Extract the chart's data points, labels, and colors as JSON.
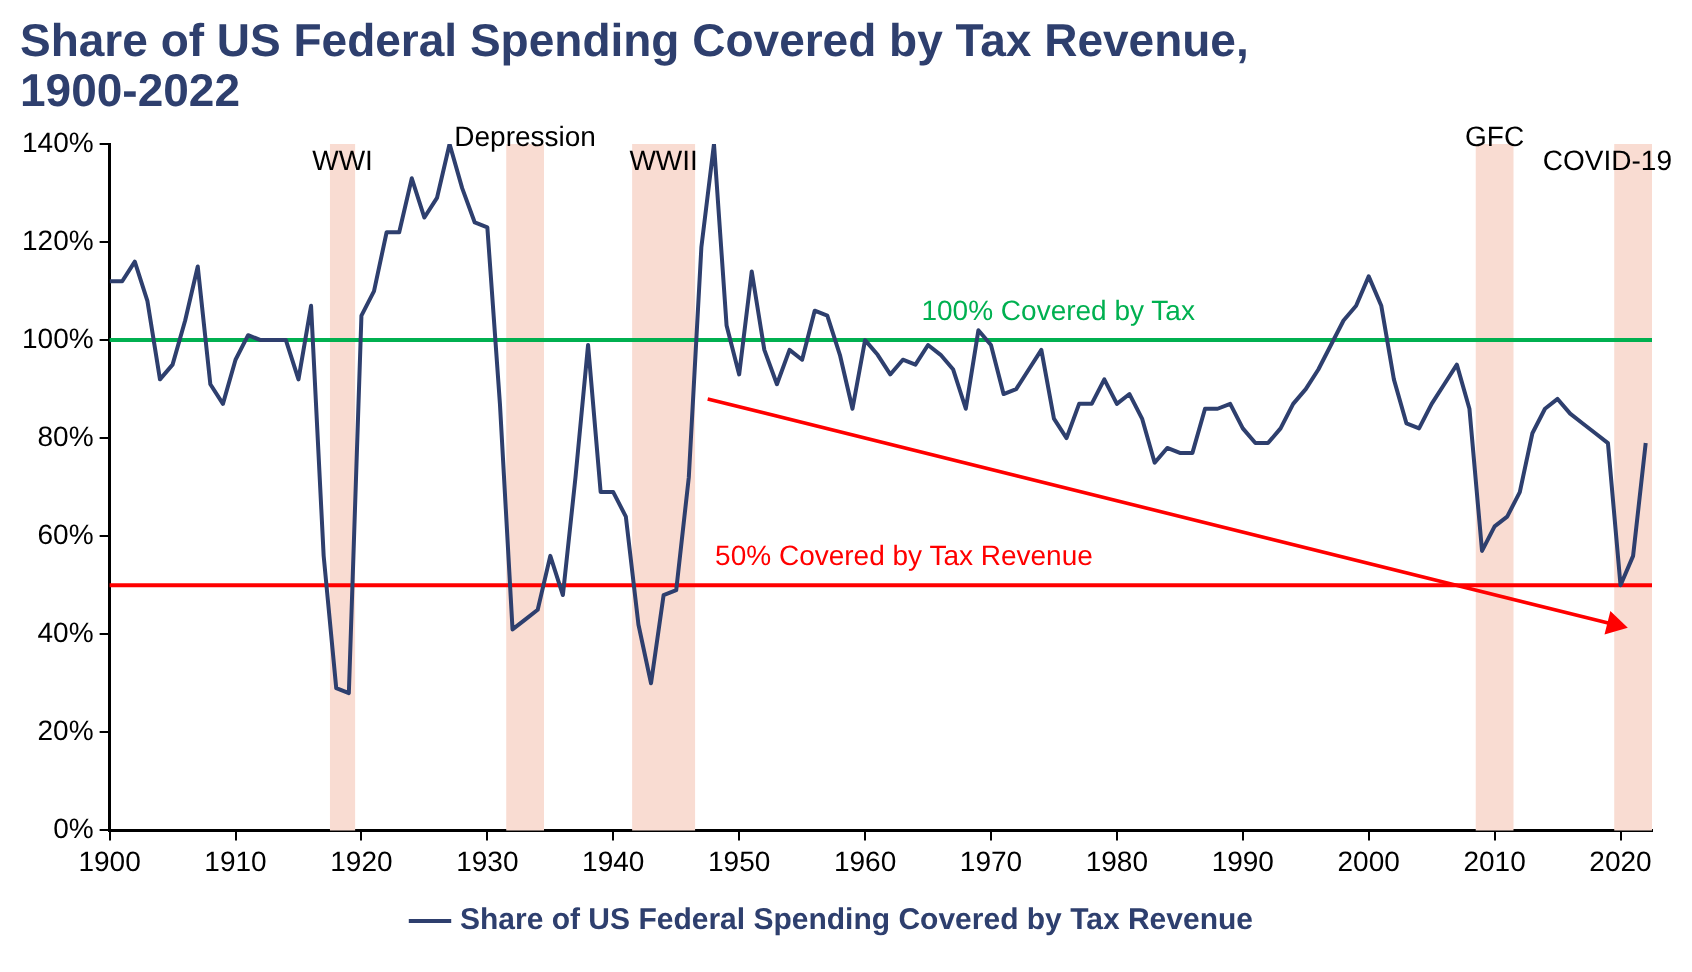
{
  "chart_data": {
    "type": "line",
    "title": "Share of US Federal Spending Covered by Tax Revenue, 1900-2022",
    "x": [
      1900,
      1901,
      1902,
      1903,
      1904,
      1905,
      1906,
      1907,
      1908,
      1909,
      1910,
      1911,
      1912,
      1913,
      1914,
      1915,
      1916,
      1917,
      1918,
      1919,
      1920,
      1921,
      1922,
      1923,
      1924,
      1925,
      1926,
      1927,
      1928,
      1929,
      1930,
      1931,
      1932,
      1933,
      1934,
      1935,
      1936,
      1937,
      1938,
      1939,
      1940,
      1941,
      1942,
      1943,
      1944,
      1945,
      1946,
      1947,
      1948,
      1949,
      1950,
      1951,
      1952,
      1953,
      1954,
      1955,
      1956,
      1957,
      1958,
      1959,
      1960,
      1961,
      1962,
      1963,
      1964,
      1965,
      1966,
      1967,
      1968,
      1969,
      1970,
      1971,
      1972,
      1973,
      1974,
      1975,
      1976,
      1977,
      1978,
      1979,
      1980,
      1981,
      1982,
      1983,
      1984,
      1985,
      1986,
      1987,
      1988,
      1989,
      1990,
      1991,
      1992,
      1993,
      1994,
      1995,
      1996,
      1997,
      1998,
      1999,
      2000,
      2001,
      2002,
      2003,
      2004,
      2005,
      2006,
      2007,
      2008,
      2009,
      2010,
      2011,
      2012,
      2013,
      2014,
      2015,
      2016,
      2017,
      2018,
      2019,
      2020,
      2021,
      2022
    ],
    "series": [
      {
        "name": "Share of US Federal Spending Covered by Tax Revenue",
        "color": "#2e3f6e",
        "values": [
          112,
          112,
          116,
          108,
          92,
          95,
          104,
          115,
          91,
          87,
          96,
          101,
          100,
          100,
          100,
          92,
          107,
          56,
          29,
          28,
          105,
          110,
          122,
          122,
          133,
          125,
          129,
          140,
          131,
          124,
          123,
          87,
          41,
          43,
          45,
          56,
          48,
          72,
          99,
          69,
          69,
          64,
          42,
          30,
          48,
          49,
          72,
          119,
          140,
          103,
          93,
          114,
          98,
          91,
          98,
          96,
          106,
          105,
          97,
          86,
          100,
          97,
          93,
          96,
          95,
          99,
          97,
          94,
          86,
          102,
          99,
          89,
          90,
          94,
          98,
          84,
          80,
          87,
          87,
          92,
          87,
          89,
          84,
          75,
          78,
          77,
          77,
          86,
          86,
          87,
          82,
          79,
          79,
          82,
          87,
          90,
          94,
          99,
          104,
          107,
          113,
          107,
          92,
          83,
          82,
          87,
          91,
          95,
          86,
          57,
          62,
          64,
          69,
          81,
          86,
          88,
          85,
          83,
          81,
          79,
          50,
          56,
          79
        ]
      },
      {
        "type": "line",
        "color": "#ff0000",
        "marker": "triangle",
        "x": [
          1947.5,
          2019.5
        ],
        "values": [
          88,
          42
        ]
      }
    ],
    "xlim": [
      1900,
      2022.5
    ],
    "xticks": [
      1900,
      1910,
      1920,
      1930,
      1940,
      1950,
      1960,
      1970,
      1980,
      1990,
      2000,
      2010,
      2020
    ],
    "ylim": [
      0,
      140
    ],
    "yticks": [
      {
        "value": 0,
        "label": "0%"
      },
      {
        "value": 20,
        "label": "20%"
      },
      {
        "value": 40,
        "label": "40%"
      },
      {
        "value": 60,
        "label": "60%"
      },
      {
        "value": 80,
        "label": "80%"
      },
      {
        "value": 100,
        "label": "100%"
      },
      {
        "value": 120,
        "label": "120%"
      },
      {
        "value": 140,
        "label": "140%"
      }
    ],
    "ref_lines": [
      {
        "axis": "y",
        "value": 100,
        "label": "100% Covered by Tax",
        "color": "#00b050"
      },
      {
        "axis": "y",
        "value": 50,
        "label": "50% Covered by Tax Revenue",
        "color": "#ff0000"
      }
    ],
    "bands": [
      {
        "axis": "x",
        "from": 1917.5,
        "to": 1919.5,
        "label": "WWI",
        "color": "#f9dcd2"
      },
      {
        "axis": "x",
        "from": 1931.5,
        "to": 1934.5,
        "label": "Depression",
        "color": "#f9dcd2"
      },
      {
        "axis": "x",
        "from": 1941.5,
        "to": 1946.5,
        "label": "WWII",
        "color": "#f9dcd2"
      },
      {
        "axis": "x",
        "from": 2008.5,
        "to": 2011.5,
        "label": "GFC",
        "color": "#f9dcd2"
      },
      {
        "axis": "x",
        "from": 2019.5,
        "to": 2022.5,
        "label": "COVID-19",
        "color": "#f9dcd2"
      }
    ],
    "grid": false,
    "legend": "bottom",
    "marker": "none",
    "line_style": "solid"
  }
}
